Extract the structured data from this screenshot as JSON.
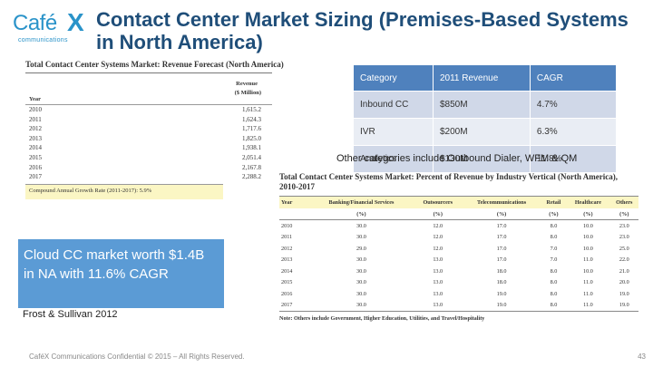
{
  "logo": {
    "word": "Café",
    "mark": "X",
    "sub": "communications"
  },
  "title": "Contact Center Market Sizing (Premises-Based Systems in North America)",
  "revenue_table": {
    "title": "Total Contact Center Systems Market: Revenue Forecast (North America)",
    "col_year": "Year",
    "col_revenue_line1": "Revenue",
    "col_revenue_line2": "($ Million)",
    "rows": [
      {
        "year": "2010",
        "value": "1,615.2"
      },
      {
        "year": "2011",
        "value": "1,624.3"
      },
      {
        "year": "2012",
        "value": "1,717.6"
      },
      {
        "year": "2013",
        "value": "1,825.0"
      },
      {
        "year": "2014",
        "value": "1,938.1"
      },
      {
        "year": "2015",
        "value": "2,051.4"
      },
      {
        "year": "2016",
        "value": "2,167.8"
      },
      {
        "year": "2017",
        "value": "2,288.2"
      }
    ],
    "cagr": "Compound Annual Growth Rate (2011-2017): 5.9%"
  },
  "category_table": {
    "headers": [
      "Category",
      "2011 Revenue",
      "CAGR"
    ],
    "rows": [
      [
        "Inbound CC",
        "$850M",
        "4.7%"
      ],
      [
        "IVR",
        "$200M",
        "6.3%"
      ],
      [
        "Analytics",
        "$130M",
        "11.8%"
      ]
    ]
  },
  "other_note": "Other categories include Outbound Dialer, WFM & QM",
  "industry_table": {
    "title": "Total Contact Center Systems Market: Percent of Revenue by Industry Vertical (North America), 2010-2017",
    "headers": [
      "Year",
      "Banking/Financial Services",
      "Outsourcers",
      "Telecommunications",
      "Retail",
      "Healthcare",
      "Others"
    ],
    "units": [
      "(%)",
      "(%)",
      "(%)",
      "(%)",
      "(%)",
      "(%)"
    ],
    "rows": [
      [
        "2010",
        "30.0",
        "12.0",
        "17.0",
        "8.0",
        "10.0",
        "23.0"
      ],
      [
        "2011",
        "30.0",
        "12.0",
        "17.0",
        "8.0",
        "10.0",
        "23.0"
      ],
      [
        "2012",
        "29.0",
        "12.0",
        "17.0",
        "7.0",
        "10.0",
        "25.0"
      ],
      [
        "2013",
        "30.0",
        "13.0",
        "17.0",
        "7.0",
        "11.0",
        "22.0"
      ],
      [
        "2014",
        "30.0",
        "13.0",
        "18.0",
        "8.0",
        "10.0",
        "21.0"
      ],
      [
        "2015",
        "30.0",
        "13.0",
        "18.0",
        "8.0",
        "11.0",
        "20.0"
      ],
      [
        "2016",
        "30.0",
        "13.0",
        "19.0",
        "8.0",
        "11.0",
        "19.0"
      ],
      [
        "2017",
        "30.0",
        "13.0",
        "19.0",
        "8.0",
        "11.0",
        "19.0"
      ]
    ],
    "note": "Note: Others include Government, Higher Education, Utilities, and Travel/Hospitality"
  },
  "callout": "Cloud CC market worth $1.4B in NA with 11.6% CAGR",
  "source": "Frost & Sullivan 2012",
  "footer": "CaféX Communications Confidential © 2015 – All Rights Reserved.",
  "page_number": "43",
  "colors": {
    "title": "#1f4e79",
    "accent": "#5b9bd5",
    "table_header": "#4f81bd",
    "highlight": "#fbf6c4"
  }
}
